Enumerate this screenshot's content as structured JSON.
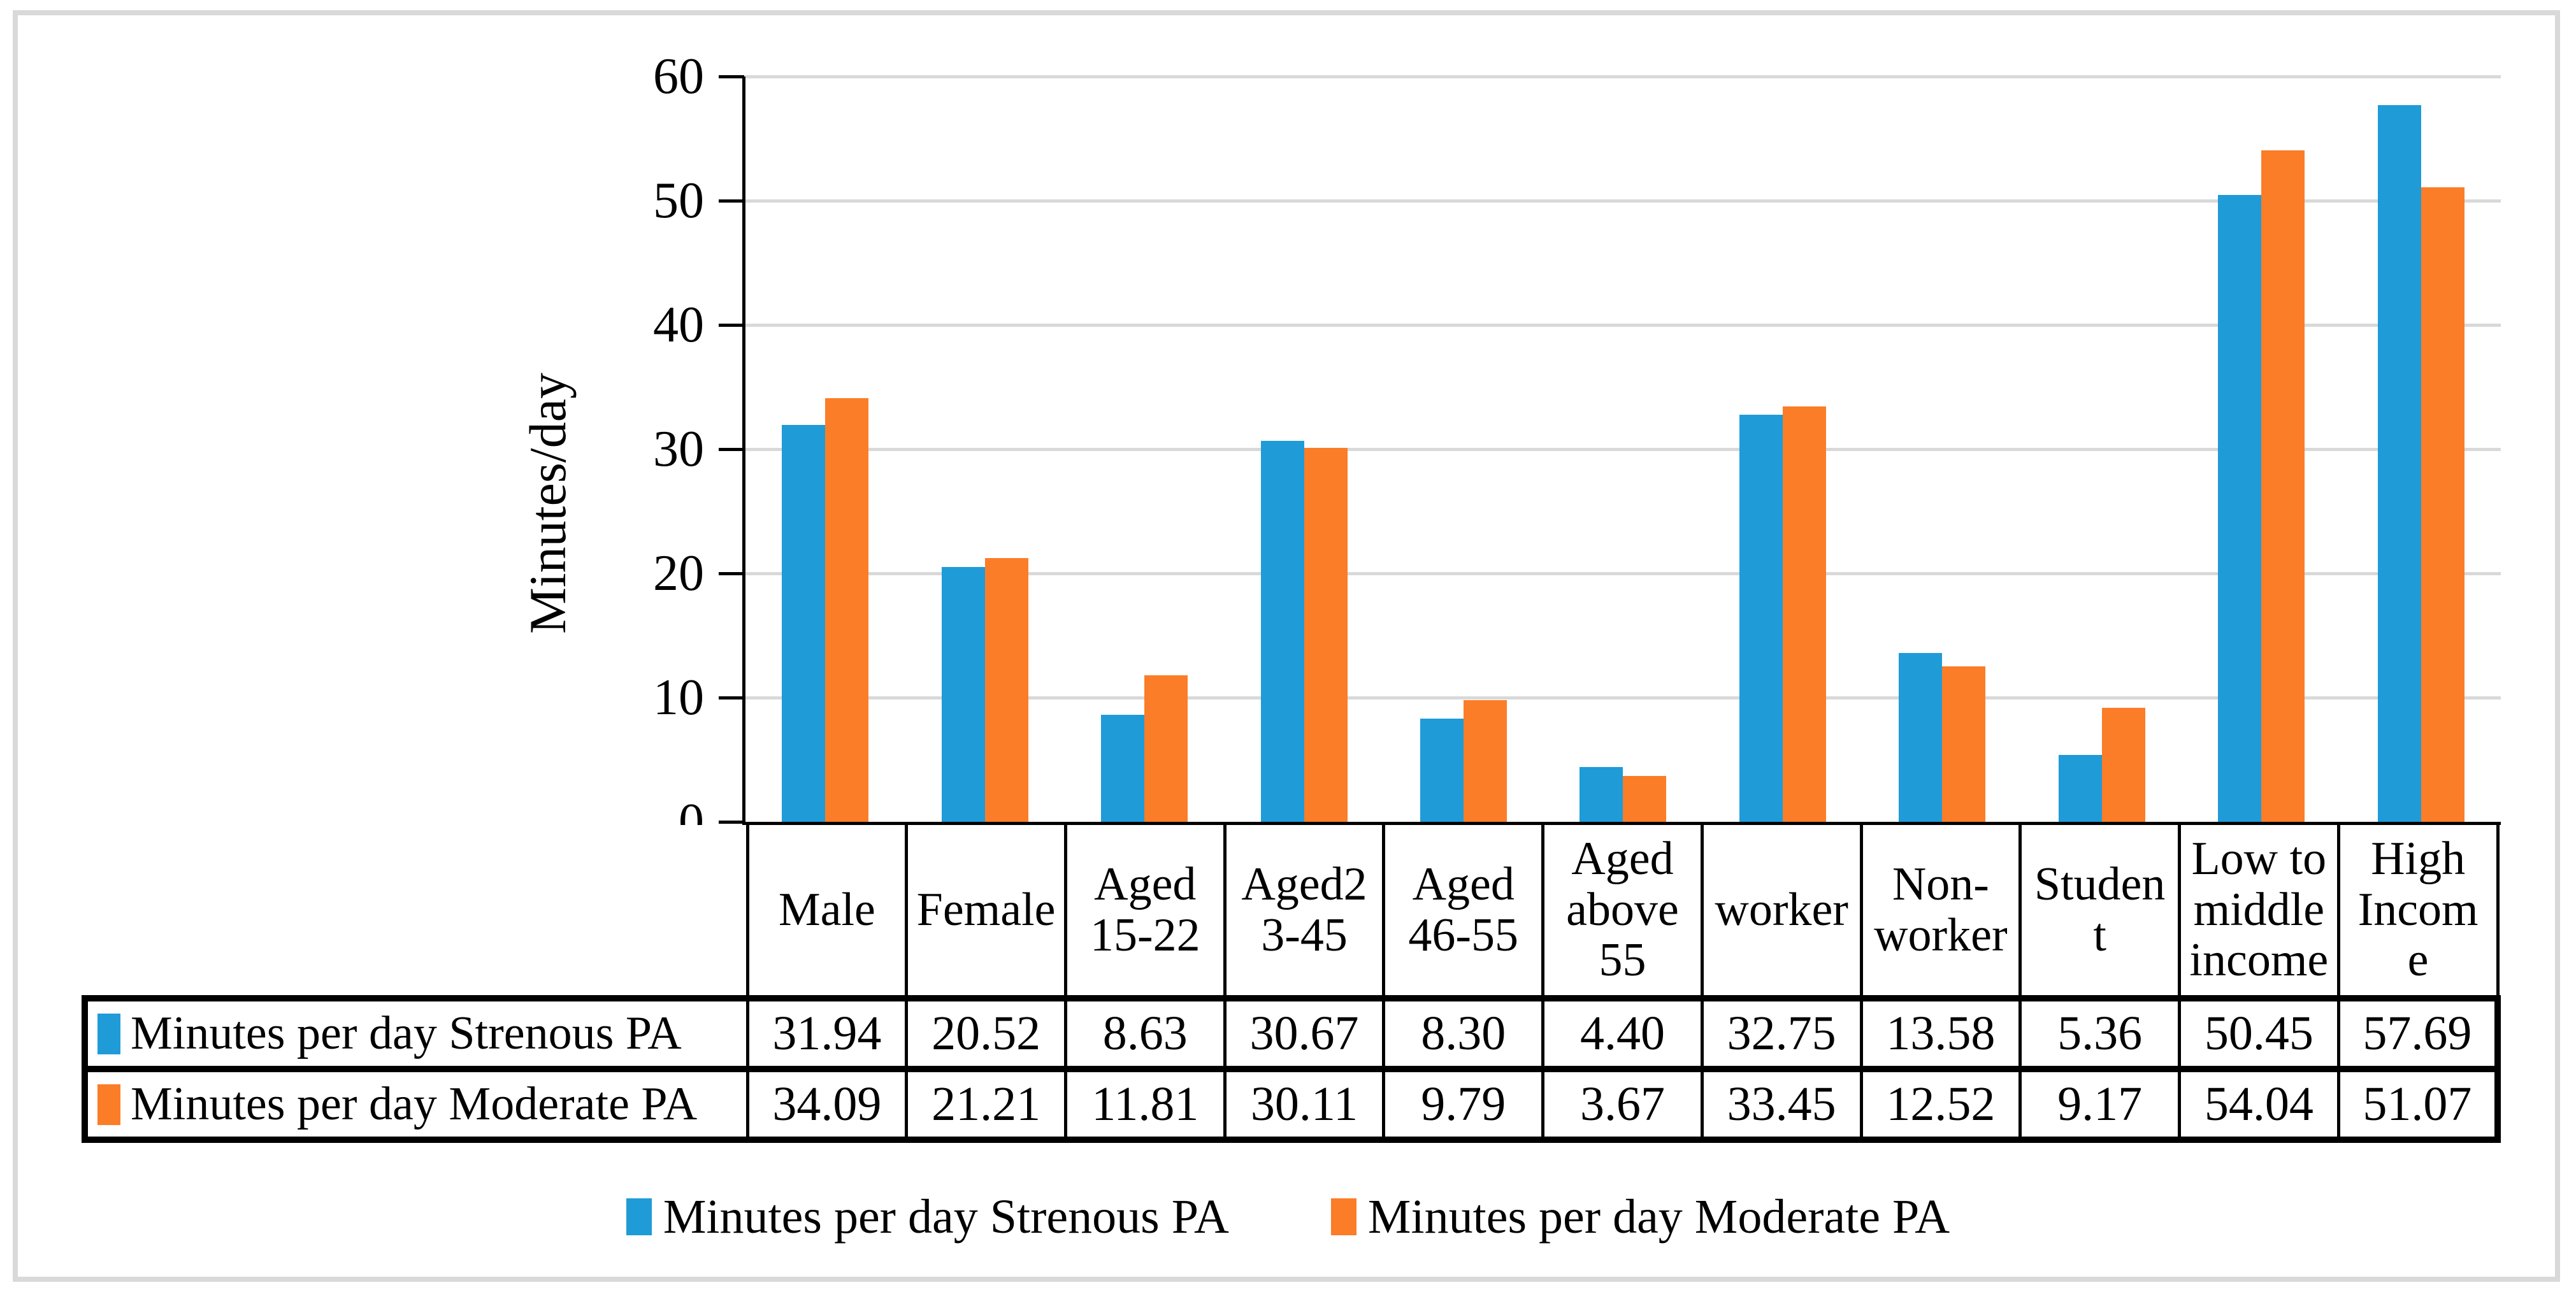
{
  "figure": {
    "y_axis_title": "Minutes/day"
  },
  "colors": {
    "series_strenous": "#1f9bd8",
    "series_moderate": "#fb7d28",
    "gridline": "#d9d9d9",
    "axis": "#000000",
    "table_border": "#000000",
    "frame_border": "#d9d9d9",
    "background": "#ffffff"
  },
  "chart_data": {
    "type": "bar",
    "title": "",
    "xlabel": "",
    "ylabel": "Minutes/day",
    "ylim": [
      0,
      60
    ],
    "yticks": [
      0,
      10,
      20,
      30,
      40,
      50,
      60
    ],
    "grid": true,
    "legend_position": "bottom",
    "data_table_shown": true,
    "categories": [
      "Male",
      "Female",
      "Aged 15-22",
      "Aged23-45",
      "Aged 46-55",
      "Aged above 55",
      "worker",
      "Non-worker",
      "Student",
      "Low to middle income",
      "High Income"
    ],
    "categories_display": [
      "Male",
      "Female",
      "Aged\n15-22",
      "Aged2\n3-45",
      "Aged\n46-55",
      "Aged\nabove\n55",
      "worker",
      "Non-\nworker",
      "Studen\nt",
      "Low to\nmiddle\nincome",
      "High\nIncom\ne"
    ],
    "series": [
      {
        "name": "Minutes per day Strenous PA",
        "color": "#1f9bd8",
        "values": [
          31.94,
          20.52,
          8.63,
          30.67,
          8.3,
          4.4,
          32.75,
          13.58,
          5.36,
          50.45,
          57.69
        ]
      },
      {
        "name": "Minutes per day Moderate PA",
        "color": "#fb7d28",
        "values": [
          34.09,
          21.21,
          11.81,
          30.11,
          9.79,
          3.67,
          33.45,
          12.52,
          9.17,
          54.04,
          51.07
        ]
      }
    ]
  }
}
